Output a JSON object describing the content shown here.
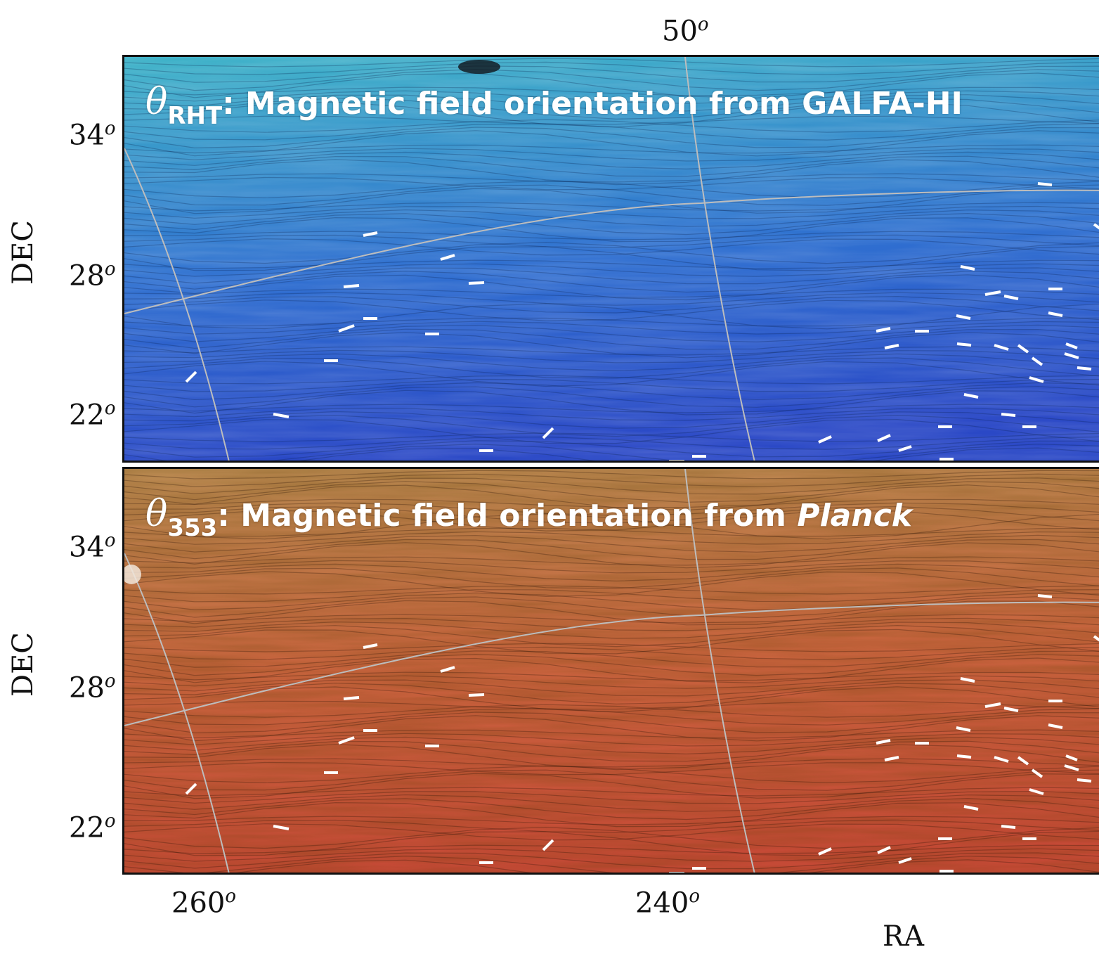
{
  "axes": {
    "top_tick": {
      "value": "50",
      "unit": "o"
    },
    "dec_ticks": [
      {
        "value": "34",
        "unit": "o"
      },
      {
        "value": "28",
        "unit": "o"
      },
      {
        "value": "22",
        "unit": "o"
      }
    ],
    "ra_ticks": [
      {
        "value": "260",
        "unit": "o"
      },
      {
        "value": "240",
        "unit": "o"
      }
    ],
    "xlabel": "RA",
    "ylabel": "DEC"
  },
  "panels": [
    {
      "theta": "θ",
      "subscript": "RHT",
      "title": ": Magnetic field orientation from GALFA-HI",
      "title_italic": "",
      "palette": {
        "top": "#3fb3c8",
        "mid": "#2f6fd0",
        "bottom": "#2a48c6"
      }
    },
    {
      "theta": "θ",
      "subscript": "353",
      "title": ": Magnetic field orientation from ",
      "title_italic": "Planck",
      "palette": {
        "top": "#b88950",
        "mid": "#c8643e",
        "bottom": "#c54a36"
      }
    }
  ],
  "overlay": {
    "grid_color": "#bdbdbd",
    "vector_color": "#ffffff"
  }
}
